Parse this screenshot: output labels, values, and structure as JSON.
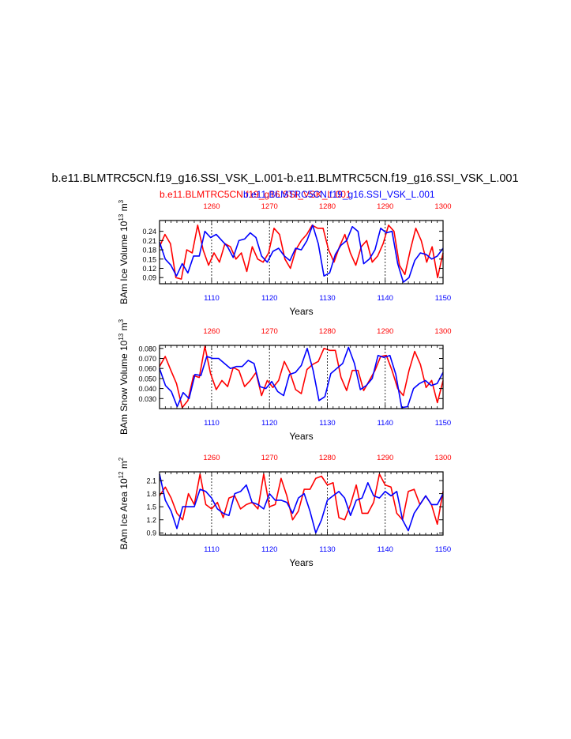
{
  "title": "b.e11.BLMTRC5CN.f19_g16.SSI_VSK_L.001-b.e11.BLMTRC5CN.f19_g16.SSI_VSK_L.001",
  "legend": {
    "red_label": "b.e11.BLMTRC5CN.f19_g16.SSI_VSK_L.001",
    "blue_label": "b.e11.BLMTRC5CN.f19_g16.SSI_VSK_L.001"
  },
  "colors": {
    "red": "#ff0000",
    "blue": "#0000ff",
    "axis": "#000000"
  },
  "chart_data": [
    {
      "type": "line",
      "ylabel_main": "BAm Ice Volume 10",
      "ylabel_exp": "13",
      "ylabel_unit": " m",
      "ylabel_unit_exp": "3",
      "xlabel": "Years",
      "xlim_bottom": [
        1101,
        1150
      ],
      "xlim_top": [
        1251,
        1300
      ],
      "ylim": [
        0.07,
        0.275
      ],
      "yticks": [
        0.09,
        0.12,
        0.15,
        0.18,
        0.21,
        0.24
      ],
      "yticklabels": [
        "0.09",
        "0.12",
        "0.15",
        "0.18",
        "0.21",
        "0.24"
      ],
      "xticks_bottom": [
        "1110",
        "1120",
        "1130",
        "1140",
        "1150"
      ],
      "xticks_top": [
        "1260",
        "1270",
        "1280",
        "1290",
        "1300"
      ],
      "vlines": [
        1110,
        1120,
        1130,
        1140
      ],
      "series": [
        {
          "name": "b.e11.BLMTRC5CN.f19_g16.SSI_VSK_L.001",
          "color": "red",
          "axis": "top",
          "values": [
            0.19,
            0.23,
            0.2,
            0.09,
            0.085,
            0.18,
            0.17,
            0.26,
            0.18,
            0.13,
            0.17,
            0.14,
            0.2,
            0.19,
            0.15,
            0.17,
            0.11,
            0.19,
            0.15,
            0.14,
            0.17,
            0.25,
            0.23,
            0.15,
            0.12,
            0.18,
            0.21,
            0.23,
            0.26,
            0.25,
            0.25,
            0.18,
            0.14,
            0.19,
            0.23,
            0.17,
            0.13,
            0.19,
            0.21,
            0.14,
            0.16,
            0.2,
            0.26,
            0.24,
            0.13,
            0.1,
            0.18,
            0.25,
            0.21,
            0.14,
            0.19,
            0.09,
            0.17
          ]
        },
        {
          "name": "b.e11.BLMTRC5CN.f19_g16.SSI_VSK_L.001",
          "color": "blue",
          "axis": "bottom",
          "values": [
            0.205,
            0.15,
            0.13,
            0.095,
            0.135,
            0.105,
            0.16,
            0.16,
            0.24,
            0.22,
            0.23,
            0.21,
            0.19,
            0.155,
            0.21,
            0.215,
            0.235,
            0.22,
            0.16,
            0.14,
            0.175,
            0.185,
            0.16,
            0.145,
            0.185,
            0.18,
            0.21,
            0.26,
            0.2,
            0.095,
            0.105,
            0.165,
            0.195,
            0.21,
            0.255,
            0.24,
            0.135,
            0.15,
            0.18,
            0.25,
            0.235,
            0.24,
            0.135,
            0.075,
            0.09,
            0.145,
            0.17,
            0.165,
            0.15,
            0.16,
            0.185
          ]
        }
      ]
    },
    {
      "type": "line",
      "ylabel_main": "BAm Snow Volume 10",
      "ylabel_exp": "13",
      "ylabel_unit": " m",
      "ylabel_unit_exp": "3",
      "xlabel": "Years",
      "xlim_bottom": [
        1101,
        1150
      ],
      "xlim_top": [
        1251,
        1300
      ],
      "ylim": [
        0.02,
        0.083
      ],
      "yticks": [
        0.03,
        0.04,
        0.05,
        0.06,
        0.07,
        0.08
      ],
      "yticklabels": [
        "0.030",
        "0.040",
        "0.050",
        "0.060",
        "0.070",
        "0.080"
      ],
      "xticks_bottom": [
        "1110",
        "1120",
        "1130",
        "1140",
        "1150"
      ],
      "xticks_top": [
        "1260",
        "1270",
        "1280",
        "1290",
        "1300"
      ],
      "vlines": [
        1110,
        1120,
        1130,
        1140
      ],
      "series": [
        {
          "name": "b.e11.BLMTRC5CN.f19_g16.SSI_VSK_L.001",
          "color": "red",
          "axis": "top",
          "values": [
            0.062,
            0.072,
            0.058,
            0.045,
            0.021,
            0.028,
            0.053,
            0.051,
            0.082,
            0.055,
            0.039,
            0.048,
            0.042,
            0.061,
            0.058,
            0.042,
            0.048,
            0.056,
            0.033,
            0.048,
            0.041,
            0.048,
            0.067,
            0.056,
            0.039,
            0.035,
            0.059,
            0.064,
            0.067,
            0.08,
            0.078,
            0.078,
            0.051,
            0.038,
            0.058,
            0.058,
            0.038,
            0.048,
            0.058,
            0.072,
            0.073,
            0.058,
            0.04,
            0.033,
            0.058,
            0.077,
            0.064,
            0.041,
            0.048,
            0.026,
            0.048
          ]
        },
        {
          "name": "b.e11.BLMTRC5CN.f19_g16.SSI_VSK_L.001",
          "color": "blue",
          "axis": "bottom",
          "values": [
            0.06,
            0.043,
            0.037,
            0.022,
            0.036,
            0.03,
            0.054,
            0.053,
            0.072,
            0.07,
            0.07,
            0.065,
            0.06,
            0.062,
            0.062,
            0.068,
            0.065,
            0.042,
            0.04,
            0.047,
            0.037,
            0.033,
            0.054,
            0.056,
            0.063,
            0.08,
            0.058,
            0.028,
            0.032,
            0.055,
            0.06,
            0.065,
            0.081,
            0.065,
            0.039,
            0.043,
            0.05,
            0.073,
            0.071,
            0.073,
            0.054,
            0.021,
            0.022,
            0.04,
            0.045,
            0.048,
            0.043,
            0.045,
            0.056
          ]
        }
      ]
    },
    {
      "type": "line",
      "ylabel_main": "BAm Ice Area 10",
      "ylabel_exp": "12",
      "ylabel_unit": " m",
      "ylabel_unit_exp": "2",
      "xlabel": "Years",
      "xlim_bottom": [
        1101,
        1150
      ],
      "xlim_top": [
        1251,
        1300
      ],
      "ylim": [
        0.85,
        2.3
      ],
      "yticks": [
        0.9,
        1.2,
        1.5,
        1.8,
        2.1
      ],
      "yticklabels": [
        "0.9",
        "1.2",
        "1.5",
        "1.8",
        "2.1"
      ],
      "xticks_bottom": [
        "1110",
        "1120",
        "1130",
        "1140",
        "1150"
      ],
      "xticks_top": [
        "1260",
        "1270",
        "1280",
        "1290",
        "1300"
      ],
      "vlines": [
        1110,
        1120,
        1130,
        1140
      ],
      "series": [
        {
          "name": "b.e11.BLMTRC5CN.f19_g16.SSI_VSK_L.001",
          "color": "red",
          "axis": "top",
          "values": [
            1.75,
            1.95,
            1.7,
            1.35,
            1.2,
            1.8,
            1.55,
            2.25,
            1.55,
            1.45,
            1.6,
            1.25,
            1.7,
            1.75,
            1.45,
            1.55,
            1.6,
            1.45,
            2.25,
            1.5,
            1.55,
            2.15,
            1.75,
            1.2,
            1.4,
            1.9,
            1.9,
            2.15,
            2.2,
            2.0,
            2.05,
            1.25,
            1.2,
            1.55,
            2.0,
            1.35,
            1.35,
            1.6,
            2.25,
            2.0,
            1.95,
            1.35,
            1.2,
            1.85,
            1.9,
            1.55,
            1.75,
            1.55,
            1.1,
            1.85
          ]
        },
        {
          "name": "b.e11.BLMTRC5CN.f19_g16.SSI_VSK_L.001",
          "color": "blue",
          "axis": "bottom",
          "values": [
            2.25,
            1.65,
            1.4,
            1.0,
            1.5,
            1.5,
            1.5,
            1.9,
            1.85,
            1.7,
            1.45,
            1.35,
            1.3,
            1.8,
            1.85,
            2.0,
            1.6,
            1.55,
            1.45,
            1.8,
            1.65,
            1.65,
            1.6,
            1.35,
            1.7,
            1.8,
            1.4,
            0.9,
            1.2,
            1.65,
            1.75,
            1.85,
            1.7,
            1.3,
            1.65,
            1.7,
            2.05,
            1.75,
            1.7,
            1.85,
            1.75,
            1.85,
            1.2,
            0.95,
            1.35,
            1.55,
            1.75,
            1.55,
            1.55,
            1.8
          ]
        }
      ]
    }
  ]
}
